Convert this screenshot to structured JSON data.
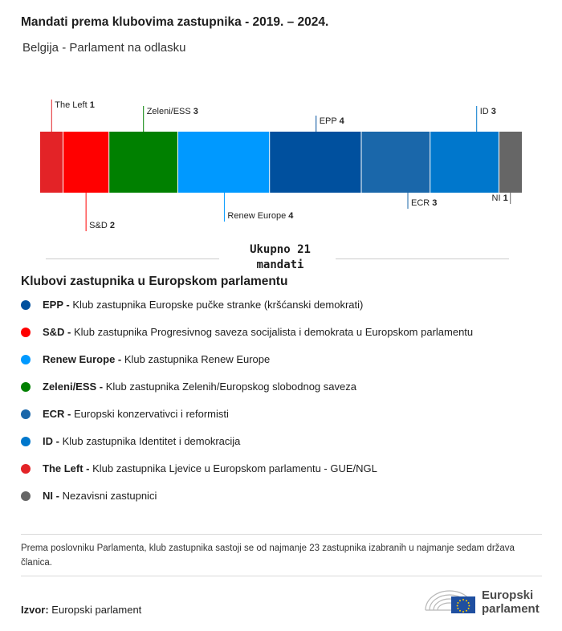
{
  "title": "Mandati prema klubovima zastupnika - 2019. – 2024.",
  "subtitle": "Belgija - Parlament na odlasku",
  "chart_data": {
    "type": "bar",
    "subtype": "stacked-horizontal",
    "categories": [
      "The Left",
      "S&D",
      "Zeleni/ESS",
      "Renew Europe",
      "EPP",
      "ECR",
      "ID",
      "NI"
    ],
    "values": [
      1,
      2,
      3,
      4,
      4,
      3,
      3,
      1
    ],
    "colors": [
      "#e32327",
      "#ff0000",
      "#008000",
      "#0099ff",
      "#00509e",
      "#1a67aa",
      "#0077cc",
      "#666666"
    ],
    "label_side": [
      "top",
      "bottom",
      "top",
      "bottom",
      "top",
      "bottom",
      "top",
      "bottom"
    ],
    "total": 21
  },
  "total_label": {
    "line1": "Ukupno 21",
    "line2": "mandati"
  },
  "legend_title": "Klubovi zastupnika u Europskom parlamentu",
  "legend": [
    {
      "abbr": "EPP - ",
      "text": "Klub zastupnika Europske pučke stranke (kršćanski demokrati)",
      "color": "#00509e"
    },
    {
      "abbr": "S&D - ",
      "text": "Klub zastupnika Progresivnog saveza socijalista i demokrata u Europskom parlamentu",
      "color": "#ff0000"
    },
    {
      "abbr": "Renew Europe - ",
      "text": "Klub zastupnika Renew Europe",
      "color": "#0099ff"
    },
    {
      "abbr": "Zeleni/ESS - ",
      "text": "Klub zastupnika Zelenih/Europskog slobodnog saveza",
      "color": "#008000"
    },
    {
      "abbr": "ECR - ",
      "text": "Europski konzervativci i reformisti",
      "color": "#1a67aa"
    },
    {
      "abbr": "ID - ",
      "text": "Klub zastupnika Identitet i demokracija",
      "color": "#0077cc"
    },
    {
      "abbr": "The Left - ",
      "text": "Klub zastupnika Ljevice u Europskom parlamentu - GUE/NGL",
      "color": "#e32327"
    },
    {
      "abbr": "NI - ",
      "text": "Nezavisni zastupnici",
      "color": "#666666"
    }
  ],
  "note": "Prema poslovniku Parlamenta, klub zastupnika sastoji se od najmanje 23 zastupnika izabranih u najmanje sedam država članica.",
  "source": {
    "label": "Izvor:",
    "value": "Europski parlament"
  },
  "logo": {
    "line1": "Europski",
    "line2": "parlament",
    "icon": "european-parliament-logo"
  }
}
